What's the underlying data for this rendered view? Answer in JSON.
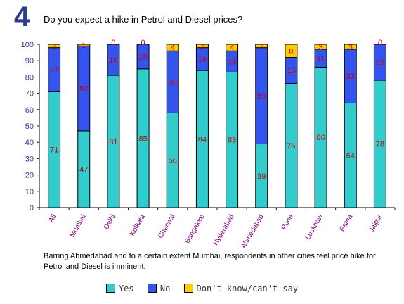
{
  "header": {
    "number": "4",
    "question": "Do you expect a hike in Petrol and Diesel prices?"
  },
  "note": "Barring Ahmedabad and to a certain extent Mumbai, respondents in other cities feel price hike for Petrol and Diesel is imminent.",
  "legend": {
    "yes": "Yes",
    "no": "No",
    "dk": "Don't know/can't say"
  },
  "colors": {
    "yes": "#33cccc",
    "no": "#3355ee",
    "dk": "#ffcc00",
    "label": "#cc0000",
    "axis_text": "#2b3c8f",
    "category_text": "#800080"
  },
  "chart_data": {
    "type": "bar",
    "stacked": true,
    "categories": [
      "All",
      "Mumbai",
      "Delhi",
      "Kolkata",
      "Chennai",
      "Bangalore",
      "Hyderabad",
      "Ahmedabad",
      "Pune",
      "Lucknow",
      "Patna",
      "Jaipur"
    ],
    "series": [
      {
        "name": "Yes",
        "values": [
          71,
          47,
          81,
          85,
          58,
          84,
          83,
          39,
          76,
          86,
          64,
          78
        ]
      },
      {
        "name": "No",
        "values": [
          27,
          52,
          19,
          15,
          38,
          14,
          13,
          59,
          16,
          11,
          33,
          22
        ]
      },
      {
        "name": "Don't know/can't say",
        "values": [
          2,
          1,
          0,
          0,
          4,
          2,
          4,
          2,
          8,
          3,
          3,
          0
        ]
      }
    ],
    "ylim": [
      0,
      100
    ],
    "yticks": [
      0,
      10,
      20,
      30,
      40,
      50,
      60,
      70,
      80,
      90,
      100
    ],
    "legend_position": "bottom"
  }
}
